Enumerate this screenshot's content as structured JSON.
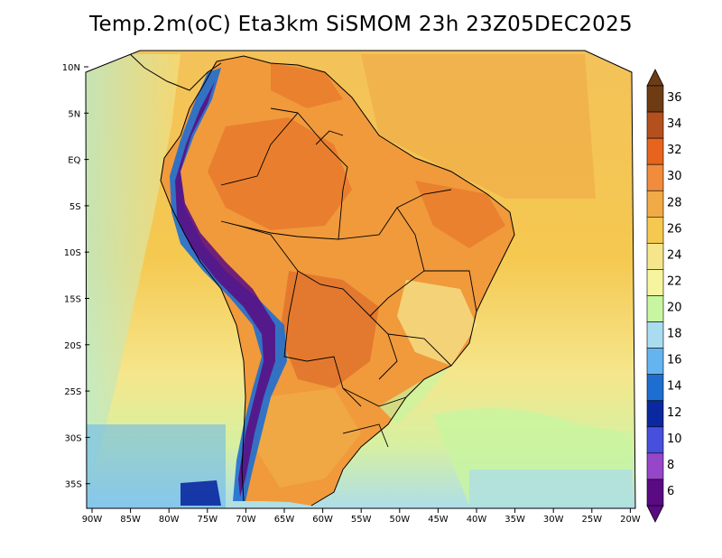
{
  "title": "Temp.2m(oC) Eta3km SiSMOM 23h 23Z05DEC2025",
  "lat_labels": [
    "10N",
    "5N",
    "EQ",
    "5S",
    "10S",
    "15S",
    "20S",
    "25S",
    "30S",
    "35S"
  ],
  "lon_labels": [
    "90W",
    "85W",
    "80W",
    "75W",
    "70W",
    "65W",
    "60W",
    "55W",
    "50W",
    "45W",
    "40W",
    "35W",
    "30W",
    "25W",
    "20W"
  ],
  "colorbar": {
    "labels": [
      "36",
      "34",
      "32",
      "30",
      "28",
      "26",
      "24",
      "22",
      "20",
      "18",
      "16",
      "14",
      "12",
      "10",
      "8",
      "6"
    ],
    "colors": [
      "#6e3c14",
      "#b4501e",
      "#e6641e",
      "#f08c3c",
      "#f0aa46",
      "#f5c850",
      "#f5e68c",
      "#f5f5a0",
      "#c8f5a0",
      "#aadcf0",
      "#64b4f0",
      "#1e6ed2",
      "#0a28a0",
      "#4650dc",
      "#9646c8",
      "#5a0a82"
    ]
  },
  "colors": {
    "ocean_warm": "#f0b850",
    "ocean_mid": "#f5d878",
    "ocean_cool": "#c8f5a0",
    "land": "#f09a3c",
    "land_hot": "#e0702a",
    "andes_cold": "#4a3cb4"
  }
}
